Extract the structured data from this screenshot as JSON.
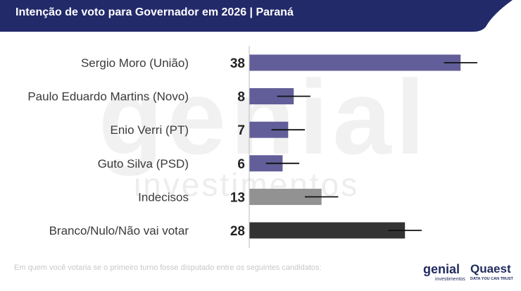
{
  "header": {
    "title": "Intenção de voto para Governador em 2026 | Paraná",
    "color": "#232a6a"
  },
  "watermark": {
    "big": "genial",
    "small": "investimentos"
  },
  "chart_data": {
    "type": "bar",
    "orientation": "horizontal",
    "title": "Intenção de voto para Governador em 2026 | Paraná",
    "categories": [
      "Sergio Moro (União)",
      "Paulo Eduardo Martins (Novo)",
      "Enio Verri (PT)",
      "Guto Silva (PSD)",
      "Indecisos",
      "Branco/Nulo/Não vai votar"
    ],
    "values": [
      38,
      8,
      7,
      6,
      13,
      28
    ],
    "value_labels": [
      "38",
      "8",
      "7",
      "6",
      "13",
      "28"
    ],
    "error_margin": 3,
    "colors": [
      "#625e99",
      "#625e99",
      "#625e99",
      "#625e99",
      "#929292",
      "#333333"
    ],
    "xlim": [
      0,
      40
    ],
    "grid": false,
    "legend": "none"
  },
  "footer": {
    "note": "Em quem você votaria se o primeiro turno fosse disputado entre os seguintes candidatos:",
    "logo_genial": "genial",
    "logo_genial_sub": "investimentos",
    "logo_quaest": "Quaest",
    "logo_quaest_tagline": "DATA YOU CAN TRUST"
  }
}
